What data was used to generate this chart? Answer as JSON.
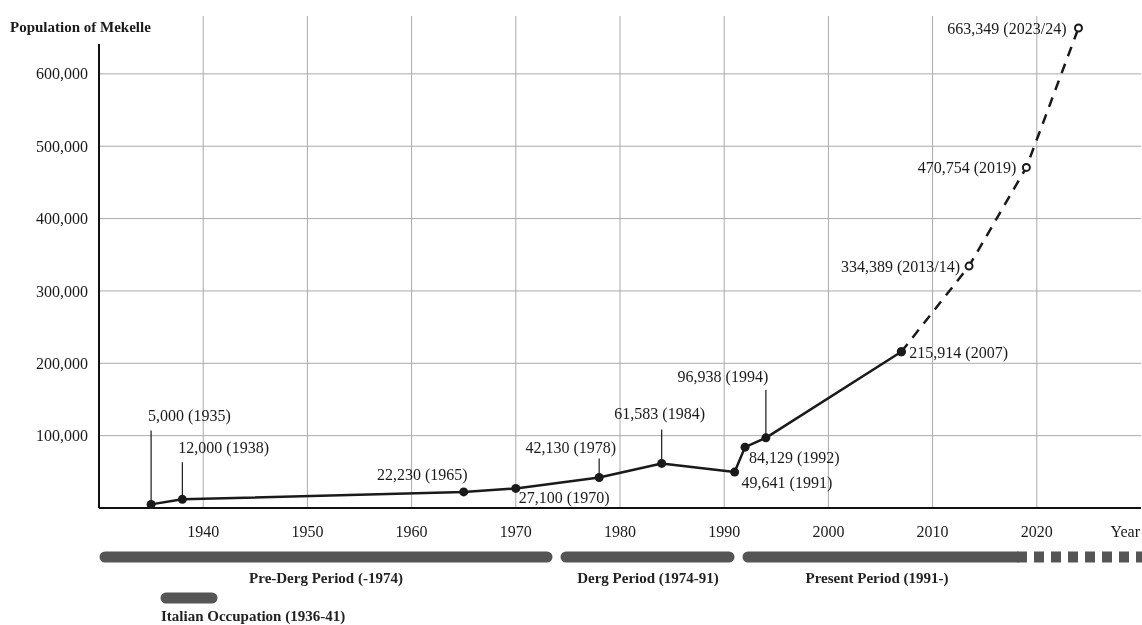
{
  "chart_data": {
    "type": "line",
    "ylabel": "Population of Mekelle",
    "xlabel": "Year",
    "xlim": [
      1930,
      2030
    ],
    "xticks": [
      1940,
      1950,
      1960,
      1970,
      1980,
      1990,
      2000,
      2010,
      2020
    ],
    "ylim": [
      0,
      680000
    ],
    "yticks": [
      {
        "value": 100000,
        "label": "100,000"
      },
      {
        "value": 200000,
        "label": "200,000"
      },
      {
        "value": 300000,
        "label": "300,000"
      },
      {
        "value": 400000,
        "label": "400,000"
      },
      {
        "value": 500000,
        "label": "500,000"
      },
      {
        "value": 600000,
        "label": "600,000"
      }
    ],
    "grid": true,
    "series": [
      {
        "color": "#1a1a1a",
        "line_style": "dashed",
        "marker": "circle",
        "x": [
          2007,
          2013.5,
          2019,
          2024
        ],
        "values": [
          215914,
          334389,
          470754,
          663349
        ],
        "value_labels": [
          null,
          "334,389 (2013/14)",
          "470,754 (2019)",
          "663,349 (2023/24)"
        ]
      },
      {
        "color": "#1a1a1a",
        "line_style": "solid",
        "marker": "circle",
        "x": [
          1935,
          1938,
          1965,
          1970,
          1978,
          1984,
          1991,
          1992,
          1994,
          2007
        ],
        "values": [
          5000,
          12000,
          22230,
          27100,
          42130,
          61583,
          49641,
          84129,
          96938,
          215914
        ],
        "value_labels": [
          "5,000 (1935)",
          "12,000 (1938)",
          "22,230 (1965)",
          "27,100 (1970)",
          "42,130 (1978)",
          "61,583 (1984)",
          "49,641 (1991)",
          "84,129 (1992)",
          "96,938 (1994)",
          "215,914 (2007)"
        ]
      }
    ],
    "annotations": [
      "Pre-Derg Period (-1974)",
      "Derg Period (1974-91)",
      "Present Period (1991-)",
      "Italian Occupation (1936-41)"
    ]
  }
}
